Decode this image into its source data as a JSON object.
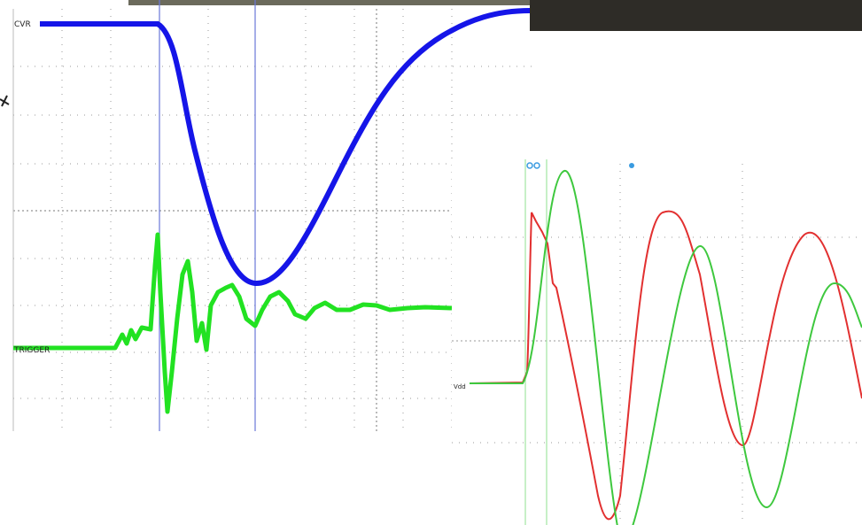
{
  "left_scope": {
    "trace_labels": [
      "CVR",
      "TRIGGER"
    ]
  },
  "right_scope": {
    "trace_label": "Vdd"
  }
}
